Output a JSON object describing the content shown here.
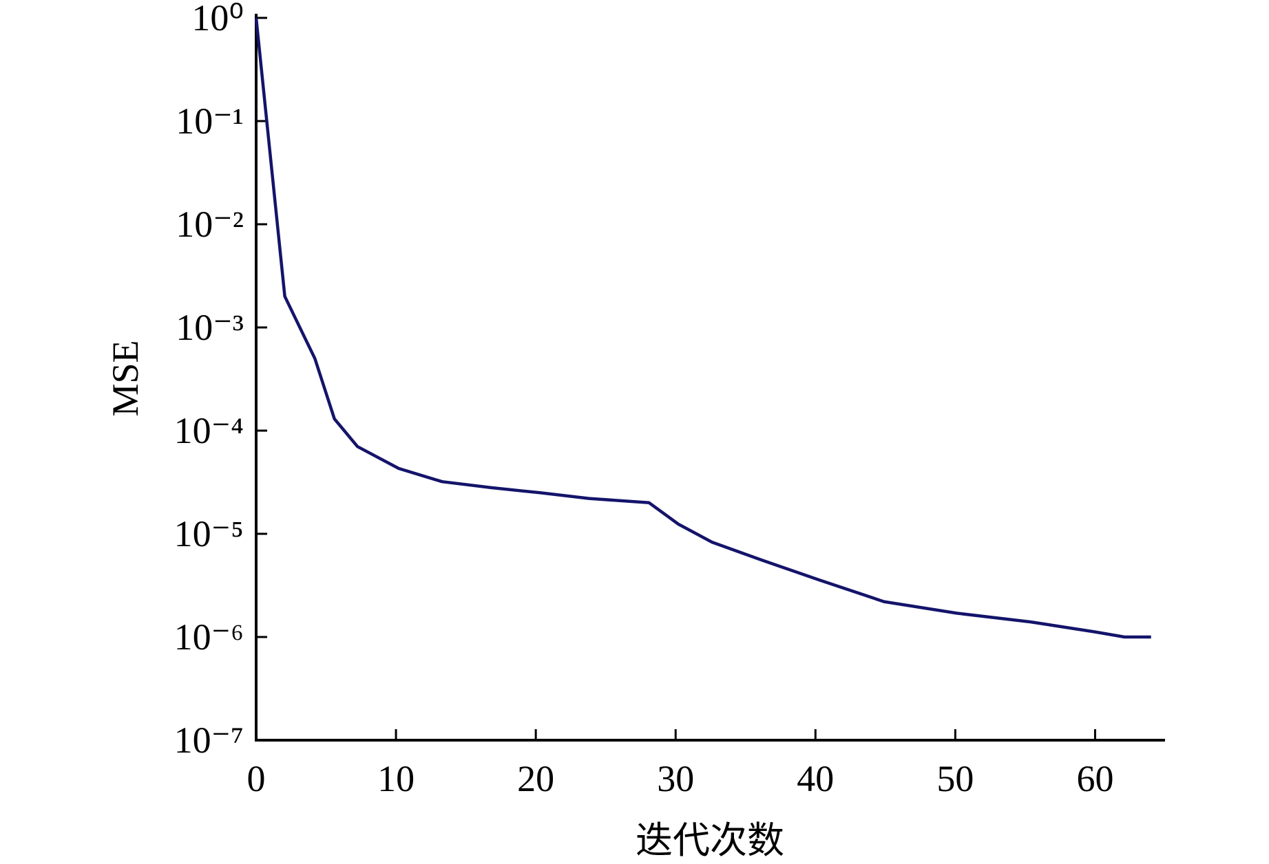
{
  "chart_data": {
    "type": "line",
    "x_label": "迭代次数",
    "y_label": "MSE",
    "log_y": true,
    "color": "#14146b",
    "x": [
      0,
      2.05,
      4.2,
      5.6,
      7.25,
      10.2,
      13.3,
      16.8,
      20.3,
      23.8,
      28.1,
      30.2,
      32.6,
      36.1,
      40.2,
      44.9,
      50.1,
      55.4,
      60.0,
      62.1,
      64.0
    ],
    "values": [
      1,
      0.002,
      0.0005,
      0.00013,
      7e-05,
      4.3e-05,
      3.2e-05,
      2.8e-05,
      2.5e-05,
      2.2e-05,
      2e-05,
      1.24e-05,
      8.3e-06,
      5.6e-06,
      3.6e-06,
      2.2e-06,
      1.7e-06,
      1.4e-06,
      1.12e-06,
      1e-06,
      1e-06
    ],
    "xlim": [
      0,
      65
    ],
    "xticks": [
      0,
      10,
      20,
      30,
      40,
      50,
      60
    ],
    "ylim": [
      1e-07,
      1
    ],
    "yticks": [
      {
        "value": 1e-07,
        "label": "10⁻⁷"
      },
      {
        "value": 1e-06,
        "label": "10⁻⁶"
      },
      {
        "value": 1e-05,
        "label": "10⁻⁵"
      },
      {
        "value": 0.0001,
        "label": "10⁻⁴"
      },
      {
        "value": 0.001,
        "label": "10⁻³"
      },
      {
        "value": 0.01,
        "label": "10⁻²"
      },
      {
        "value": 0.1,
        "label": "10⁻¹"
      },
      {
        "value": 1,
        "label": "10⁰"
      }
    ]
  }
}
